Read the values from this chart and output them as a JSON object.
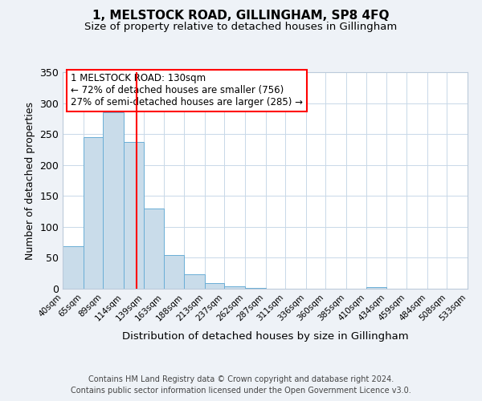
{
  "title": "1, MELSTOCK ROAD, GILLINGHAM, SP8 4FQ",
  "subtitle": "Size of property relative to detached houses in Gillingham",
  "xlabel": "Distribution of detached houses by size in Gillingham",
  "ylabel": "Number of detached properties",
  "bar_values": [
    69,
    245,
    285,
    237,
    130,
    54,
    23,
    9,
    4,
    1,
    0,
    0,
    0,
    0,
    0,
    3,
    0,
    0,
    0,
    0
  ],
  "bar_edges": [
    40,
    65,
    89,
    114,
    139,
    163,
    188,
    213,
    237,
    262,
    287,
    311,
    336,
    360,
    385,
    410,
    434,
    459,
    484,
    508,
    533
  ],
  "tick_labels": [
    "40sqm",
    "65sqm",
    "89sqm",
    "114sqm",
    "139sqm",
    "163sqm",
    "188sqm",
    "213sqm",
    "237sqm",
    "262sqm",
    "287sqm",
    "311sqm",
    "336sqm",
    "360sqm",
    "385sqm",
    "410sqm",
    "434sqm",
    "459sqm",
    "484sqm",
    "508sqm",
    "533sqm"
  ],
  "bar_color": "#c9dcea",
  "bar_edge_color": "#6aaed6",
  "red_line_x": 130,
  "ylim": [
    0,
    350
  ],
  "yticks": [
    0,
    50,
    100,
    150,
    200,
    250,
    300,
    350
  ],
  "annotation_title": "1 MELSTOCK ROAD: 130sqm",
  "annotation_line1": "← 72% of detached houses are smaller (756)",
  "annotation_line2": "27% of semi-detached houses are larger (285) →",
  "footnote1": "Contains HM Land Registry data © Crown copyright and database right 2024.",
  "footnote2": "Contains public sector information licensed under the Open Government Licence v3.0.",
  "bg_color": "#eef2f7",
  "plot_bg_color": "#ffffff",
  "grid_color": "#c8d8e8"
}
